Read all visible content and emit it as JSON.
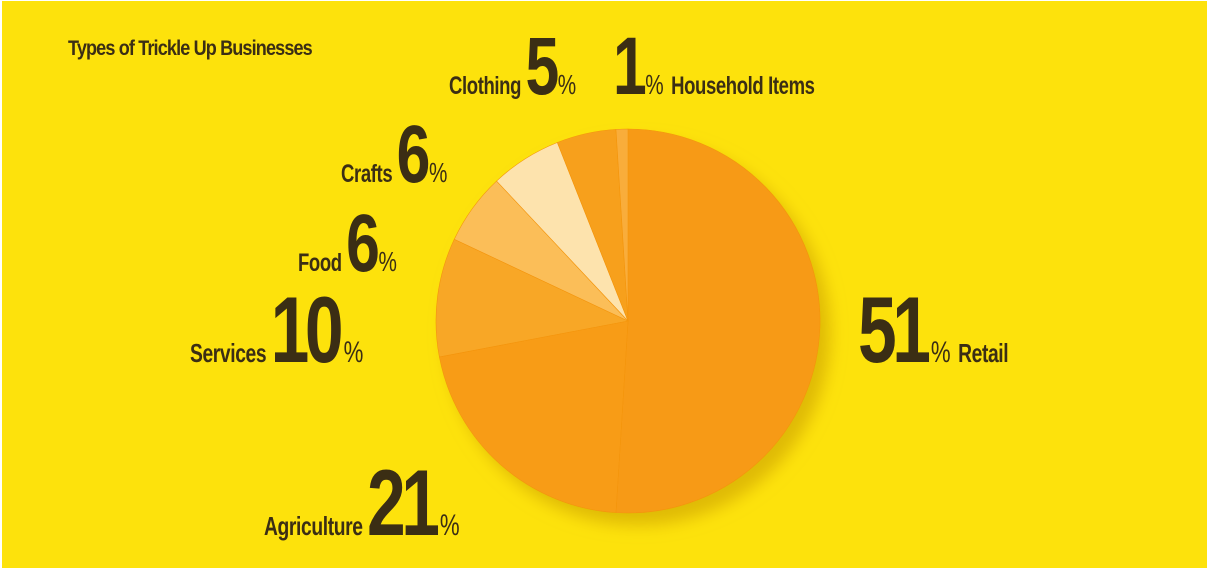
{
  "chart_data": {
    "type": "pie",
    "title": "Types of Trickle Up Businesses",
    "slices": [
      {
        "label": "Retail",
        "value": 51,
        "color": "#f79a12"
      },
      {
        "label": "Agriculture",
        "value": 21,
        "color": "#f89c16"
      },
      {
        "label": "Services",
        "value": 10,
        "color": "#f8a728"
      },
      {
        "label": "Food",
        "value": 6,
        "color": "#fbbe59"
      },
      {
        "label": "Crafts",
        "value": 6,
        "color": "#fde3ad"
      },
      {
        "label": "Clothing",
        "value": 5,
        "color": "#f7a01b"
      },
      {
        "label": "Household Items",
        "value": 1,
        "color": "#f9ad3a"
      }
    ],
    "percent_sign": "%",
    "start_angle_deg": 0,
    "direction": "clockwise"
  },
  "colors": {
    "background": "#fde20c",
    "text": "#3b2e14"
  }
}
